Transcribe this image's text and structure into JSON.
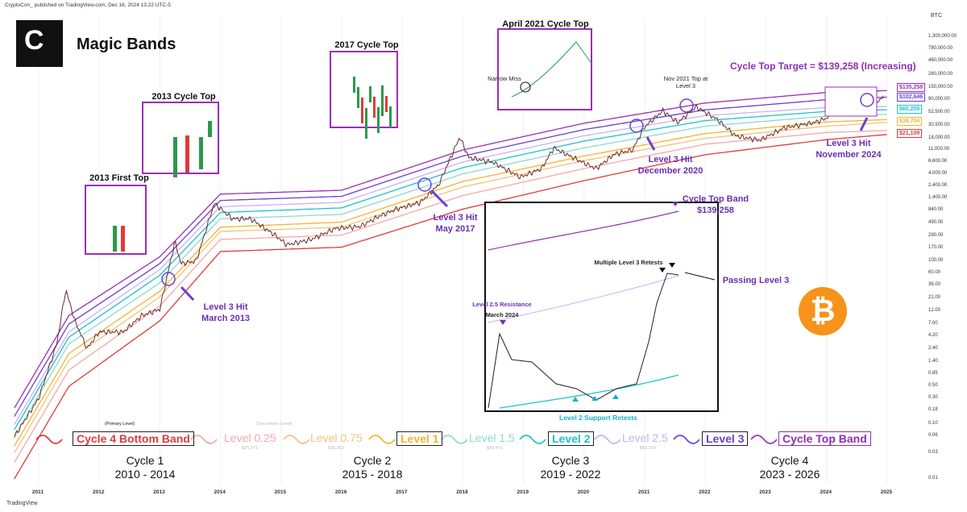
{
  "header": {
    "publisher": "CryptoCon_ published on TradingView.com, Dec 16, 2024 13:22 UTC-5",
    "footer": "TradingView",
    "unit": "BTC"
  },
  "colors": {
    "cycle4_bottom_band": "#e03a3a",
    "level_025": "#f4a8a8",
    "level_075": "#f4c27a",
    "level_1": "#f2b430",
    "level_15": "#8fd8cf",
    "level_2": "#1cc2cf",
    "level_25": "#c7b3ef",
    "level_3": "#6a3fd0",
    "cycle_top_band": "#9b2fb5",
    "annotation": "#6a2fb3",
    "bitcoin": "#f7931a"
  },
  "chart_data": {
    "type": "line",
    "title": "Magic Bands",
    "ylabel": "BTC",
    "yscale": "log",
    "y_tick_labels": [
      "1,300,000.00",
      "780,000.00",
      "460,000.00",
      "260,000.00",
      "150,000.00",
      "90,000.00",
      "52,500.00",
      "30,500.00",
      "18,000.00",
      "11,000.00",
      "6,600.00",
      "4,000.00",
      "2,400.00",
      "1,400.00",
      "840.00",
      "490.00",
      "290.00",
      "170.00",
      "100.00",
      "60.00",
      "36.00",
      "21.00",
      "12.00",
      "7.00",
      "4.20",
      "2.40",
      "1.40",
      "0.85",
      "0.50",
      "0.30",
      "0.18",
      "0.10",
      "0.06",
      "0.03",
      "0.01"
    ],
    "x_tick_labels": [
      "2011",
      "2012",
      "2013",
      "2014",
      "2015",
      "2016",
      "2017",
      "2018",
      "2019",
      "2020",
      "2021",
      "2022",
      "2023",
      "2024",
      "2025"
    ],
    "price": {
      "name": "BTC price",
      "x": [
        2010.6,
        2011.0,
        2011.3,
        2011.45,
        2011.6,
        2011.8,
        2012.0,
        2012.4,
        2012.7,
        2013.0,
        2013.25,
        2013.35,
        2013.6,
        2013.9,
        2014.2,
        2014.5,
        2014.9,
        2015.1,
        2015.5,
        2015.9,
        2016.3,
        2016.6,
        2016.9,
        2017.3,
        2017.6,
        2017.95,
        2018.1,
        2018.5,
        2018.95,
        2019.3,
        2019.5,
        2019.9,
        2020.2,
        2020.5,
        2020.8,
        2021.0,
        2021.3,
        2021.55,
        2021.85,
        2022.2,
        2022.5,
        2022.9,
        2023.3,
        2023.8,
        2024.0,
        2024.2,
        2024.6,
        2024.95
      ],
      "y": [
        0.06,
        0.3,
        3,
        30,
        8,
        2.5,
        5,
        5,
        10,
        13,
        230,
        90,
        100,
        1150,
        600,
        600,
        300,
        200,
        250,
        400,
        430,
        650,
        900,
        1200,
        2500,
        19000,
        8000,
        6500,
        3500,
        5000,
        12000,
        7200,
        5000,
        9200,
        11000,
        29000,
        58000,
        35000,
        68000,
        40000,
        20000,
        16500,
        28000,
        35000,
        42000,
        70000,
        58000,
        104000
      ]
    },
    "bands": [
      {
        "name": "Cycle 4 Bottom Band",
        "x": [
          2010.6,
          2011.5,
          2013,
          2014,
          2016,
          2018,
          2020,
          2022,
          2024,
          2025
        ],
        "y": [
          0.01,
          0.5,
          8,
          150,
          180,
          900,
          3000,
          9000,
          17000,
          21109
        ]
      },
      {
        "name": "Level 0.25",
        "x": [
          2010.6,
          2011.5,
          2013,
          2014,
          2016,
          2018,
          2020,
          2022,
          2024,
          2025
        ],
        "y": [
          0.02,
          1,
          15,
          250,
          300,
          1600,
          5000,
          14000,
          23000,
          25071
        ]
      },
      {
        "name": "Level 0.75",
        "x": [
          2010.6,
          2011.5,
          2013,
          2014,
          2016,
          2018,
          2020,
          2022,
          2024,
          2025
        ],
        "y": [
          0.03,
          1.5,
          22,
          350,
          420,
          2300,
          7000,
          18000,
          30000,
          35363
        ]
      },
      {
        "name": "Level 1",
        "x": [
          2010.6,
          2011.5,
          2013,
          2014,
          2016,
          2018,
          2020,
          2022,
          2024,
          2025
        ],
        "y": [
          0.04,
          2,
          28,
          420,
          520,
          2900,
          8500,
          22000,
          36000,
          39704
        ]
      },
      {
        "name": "Level 1.5",
        "x": [
          2010.6,
          2011.5,
          2013,
          2014,
          2016,
          2018,
          2020,
          2022,
          2024,
          2025
        ],
        "y": [
          0.06,
          3,
          40,
          600,
          720,
          4000,
          12000,
          30000,
          46000,
          49471
        ]
      },
      {
        "name": "Level 2",
        "x": [
          2010.6,
          2011.5,
          2013,
          2014,
          2016,
          2018,
          2020,
          2022,
          2024,
          2025
        ],
        "y": [
          0.08,
          4,
          55,
          780,
          950,
          5200,
          16000,
          38000,
          56000,
          60209
        ]
      },
      {
        "name": "Level 2.5",
        "x": [
          2010.6,
          2011.5,
          2013,
          2014,
          2016,
          2018,
          2020,
          2022,
          2024,
          2025
        ],
        "y": [
          0.1,
          5,
          70,
          1000,
          1200,
          6600,
          20000,
          47000,
          66000,
          69019
        ]
      },
      {
        "name": "Level 3",
        "x": [
          2010.6,
          2011.5,
          2013,
          2014,
          2016,
          2018,
          2020,
          2022,
          2024,
          2025
        ],
        "y": [
          0.14,
          7,
          90,
          1300,
          1550,
          8500,
          26000,
          60000,
          92000,
          102646
        ]
      },
      {
        "name": "Cycle Top Band",
        "x": [
          2010.6,
          2011.5,
          2013,
          2014,
          2016,
          2018,
          2020,
          2022,
          2024,
          2025
        ],
        "y": [
          0.2,
          10,
          120,
          1700,
          2000,
          11000,
          34000,
          80000,
          125000,
          135258
        ]
      }
    ],
    "price_tags": [
      {
        "label": "$135,258",
        "color": "#9b2fb5"
      },
      {
        "label": "$102,646",
        "color": "#6a3fd0"
      },
      {
        "label": "$60,209",
        "color": "#1cc2cf"
      },
      {
        "label": "$39,704",
        "color": "#f2b430"
      },
      {
        "label": "$21,109",
        "color": "#e03a3a"
      }
    ],
    "annotations": {
      "cycle_top_target": "Cycle Top Target = $139,258 (Increasing)",
      "first_top_2013": "2013 First Top",
      "cycle_top_2013": "2013 Cycle Top",
      "cycle_top_2017": "2017 Cycle Top",
      "cycle_top_2021": "April 2021 Cycle Top",
      "narrow_miss": "Narrow Miss",
      "nov_2021": "Nov 2021 Top at Level 3",
      "l3_mar_2013": "Level 3 Hit March 2013",
      "l3_may_2017": "Level 3 Hit May 2017",
      "l3_dec_2020": "Level 3 Hit December 2020",
      "l3_nov_2024": "Level 3 Hit November 2024"
    },
    "inset": {
      "cycle_top_band": "Cycle Top Band",
      "cycle_top_value": "$139,258",
      "multiple_retests": "Multiple Level 3 Retests",
      "passing_level3": "Passing Level 3",
      "level25_resistance": "Level 2.5 Resistance",
      "march_2024": "March 2024",
      "support_retests": "Level 2 Support Retests"
    },
    "legend": [
      {
        "label": "Cycle 4 Bottom Band",
        "boxed": true,
        "note": "(Primary Level)",
        "value": ""
      },
      {
        "label": "Level 0.25",
        "boxed": false,
        "note": "(Secondary Level)",
        "value": "$25,071"
      },
      {
        "label": "Level 0.75",
        "boxed": false,
        "note": "",
        "value": "$35,363"
      },
      {
        "label": "Level 1",
        "boxed": true,
        "note": "",
        "value": ""
      },
      {
        "label": "Level 1.5",
        "boxed": false,
        "note": "",
        "value": "$49,471"
      },
      {
        "label": "Level 2",
        "boxed": true,
        "note": "",
        "value": ""
      },
      {
        "label": "Level 2.5",
        "boxed": false,
        "note": "",
        "value": "$69,019"
      },
      {
        "label": "Level 3",
        "boxed": true,
        "note": "",
        "value": ""
      },
      {
        "label": "Cycle Top Band",
        "boxed": true,
        "note": "",
        "value": ""
      }
    ],
    "cycles": [
      {
        "name": "Cycle 1",
        "years": "2010 - 2014"
      },
      {
        "name": "Cycle 2",
        "years": "2015 - 2018"
      },
      {
        "name": "Cycle 3",
        "years": "2019 - 2022"
      },
      {
        "name": "Cycle 4",
        "years": "2023 - 2026"
      }
    ]
  }
}
